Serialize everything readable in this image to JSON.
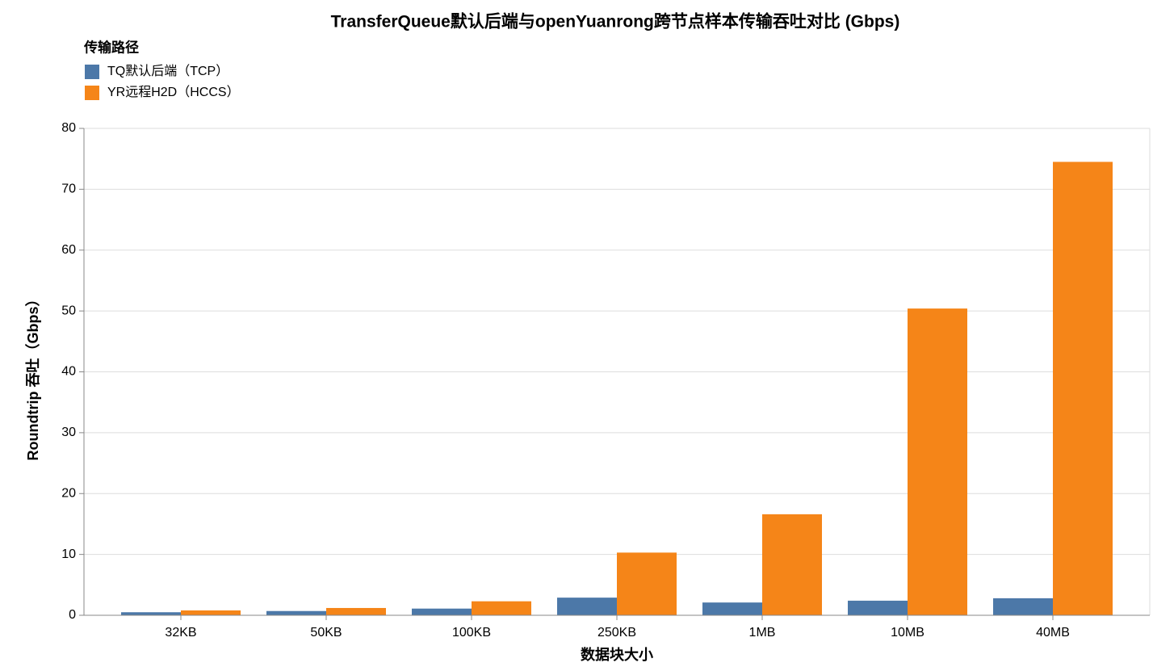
{
  "chart_data": {
    "type": "bar",
    "title": "TransferQueue默认后端与openYuanrong跨节点样本传输吞吐对比 (Gbps)",
    "x_label": "数据块大小",
    "y_label": "Roundtrip 吞吐（Gbps）",
    "legend_title": "传输路径",
    "categories": [
      "32KB",
      "50KB",
      "100KB",
      "250KB",
      "1MB",
      "10MB",
      "40MB"
    ],
    "series": [
      {
        "name": "TQ默认后端（TCP）",
        "color": "#4c78a8",
        "values": [
          0.5,
          0.7,
          1.1,
          2.9,
          2.1,
          2.4,
          2.8
        ]
      },
      {
        "name": "YR远程H2D（HCCS）",
        "color": "#f58518",
        "values": [
          0.8,
          1.2,
          2.3,
          10.3,
          16.6,
          50.4,
          74.5
        ]
      }
    ],
    "ylim": [
      0,
      80
    ],
    "yticks": [
      0,
      10,
      20,
      30,
      40,
      50,
      60,
      70,
      80
    ],
    "grid": true
  }
}
